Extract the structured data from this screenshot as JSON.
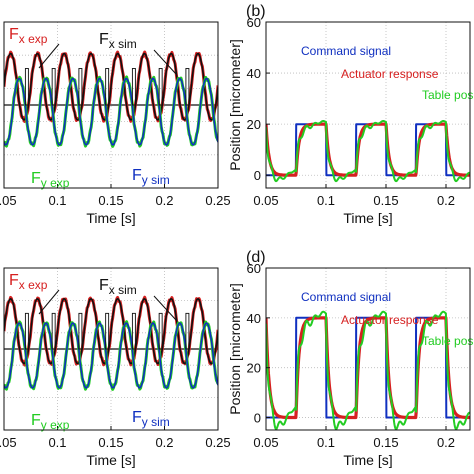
{
  "chart_data": [
    {
      "type": "line",
      "panel": "force-top",
      "panel_label": "",
      "xlabel": "Time [s]",
      "ylabel": "",
      "xlim": [
        0.05,
        0.25
      ],
      "x_ticks": [
        "0.05",
        "0.1",
        "0.15",
        "0.2",
        "0.25"
      ],
      "grid": true,
      "series": [
        {
          "name": "F x exp",
          "color": "#d62020",
          "period_s": 0.025,
          "phase_s": 0.0,
          "amplitude": 1,
          "offset": 0.55
        },
        {
          "name": "F x sim",
          "color": "#111111",
          "period_s": 0.025,
          "phase_s": 0.0,
          "amplitude": 1,
          "offset": 0.55
        },
        {
          "name": "F y exp",
          "color": "#22cc22",
          "period_s": 0.025,
          "phase_s": 0.008,
          "amplitude": 1,
          "offset": -0.2
        },
        {
          "name": "F y sim",
          "color": "#1030c0",
          "period_s": 0.025,
          "phase_s": 0.008,
          "amplitude": 1,
          "offset": -0.2
        }
      ],
      "annotations": {
        "fx_exp": {
          "main": "F",
          "sub": "x exp"
        },
        "fx_sim": {
          "main": "F",
          "sub": "x sim"
        },
        "fy_exp": {
          "main": "F",
          "sub": "y exp"
        },
        "fy_sim": {
          "main": "F",
          "sub": "y sim"
        }
      }
    },
    {
      "type": "line",
      "panel": "position-top",
      "panel_label": "(b)",
      "xlabel": "Time [s]",
      "ylabel": "Position [micrometer]",
      "xlim": [
        0.05,
        0.22
      ],
      "ylim": [
        -5,
        60
      ],
      "x_ticks": [
        "0.05",
        "0.1",
        "0.15",
        "0.2"
      ],
      "y_ticks": [
        0,
        20,
        40,
        60
      ],
      "grid": true,
      "series": [
        {
          "name": "Command signal",
          "color": "#1030c0",
          "low": 0,
          "high": 20,
          "period_s": 0.05,
          "rise_s": 0.075
        },
        {
          "name": "Actuator response",
          "color": "#d62020",
          "low": 0,
          "high": 20,
          "period_s": 0.05,
          "rise_s": 0.075
        },
        {
          "name": "Table pos",
          "color": "#22cc22",
          "low": 0,
          "high": 20,
          "period_s": 0.05,
          "rise_s": 0.075
        }
      ]
    },
    {
      "type": "line",
      "panel": "force-bottom",
      "panel_label": "",
      "xlabel": "Time [s]",
      "ylabel": "",
      "xlim": [
        0.05,
        0.25
      ],
      "x_ticks": [
        "0.05",
        "0.1",
        "0.15",
        "0.2",
        "0.25"
      ],
      "grid": true,
      "series": [
        {
          "name": "F x exp",
          "color": "#d62020",
          "period_s": 0.025,
          "phase_s": 0.0,
          "amplitude": 1,
          "offset": 0.55
        },
        {
          "name": "F x sim",
          "color": "#111111",
          "period_s": 0.025,
          "phase_s": 0.0,
          "amplitude": 1,
          "offset": 0.55
        },
        {
          "name": "F y exp",
          "color": "#22cc22",
          "period_s": 0.025,
          "phase_s": 0.008,
          "amplitude": 1,
          "offset": -0.2
        },
        {
          "name": "F y sim",
          "color": "#1030c0",
          "period_s": 0.025,
          "phase_s": 0.008,
          "amplitude": 1,
          "offset": -0.2
        }
      ],
      "annotations": {
        "fx_exp": {
          "main": "F",
          "sub": "x exp"
        },
        "fx_sim": {
          "main": "F",
          "sub": "x sim"
        },
        "fy_exp": {
          "main": "F",
          "sub": "y exp"
        },
        "fy_sim": {
          "main": "F",
          "sub": "y sim"
        }
      }
    },
    {
      "type": "line",
      "panel": "position-bottom",
      "panel_label": "(d)",
      "xlabel": "Time [s]",
      "ylabel": "Position [micrometer]",
      "xlim": [
        0.05,
        0.22
      ],
      "ylim": [
        -5,
        60
      ],
      "x_ticks": [
        "0.05",
        "0.1",
        "0.15",
        "0.2"
      ],
      "y_ticks": [
        0,
        20,
        40,
        60
      ],
      "grid": true,
      "series": [
        {
          "name": "Command signal",
          "color": "#1030c0",
          "low": 0,
          "high": 40,
          "period_s": 0.05,
          "rise_s": 0.075
        },
        {
          "name": "Actuator response",
          "color": "#d62020",
          "low": 0,
          "high": 40,
          "period_s": 0.05,
          "rise_s": 0.075
        },
        {
          "name": "Table pos",
          "color": "#22cc22",
          "low": 0,
          "high": 40,
          "period_s": 0.05,
          "rise_s": 0.075
        }
      ]
    }
  ]
}
